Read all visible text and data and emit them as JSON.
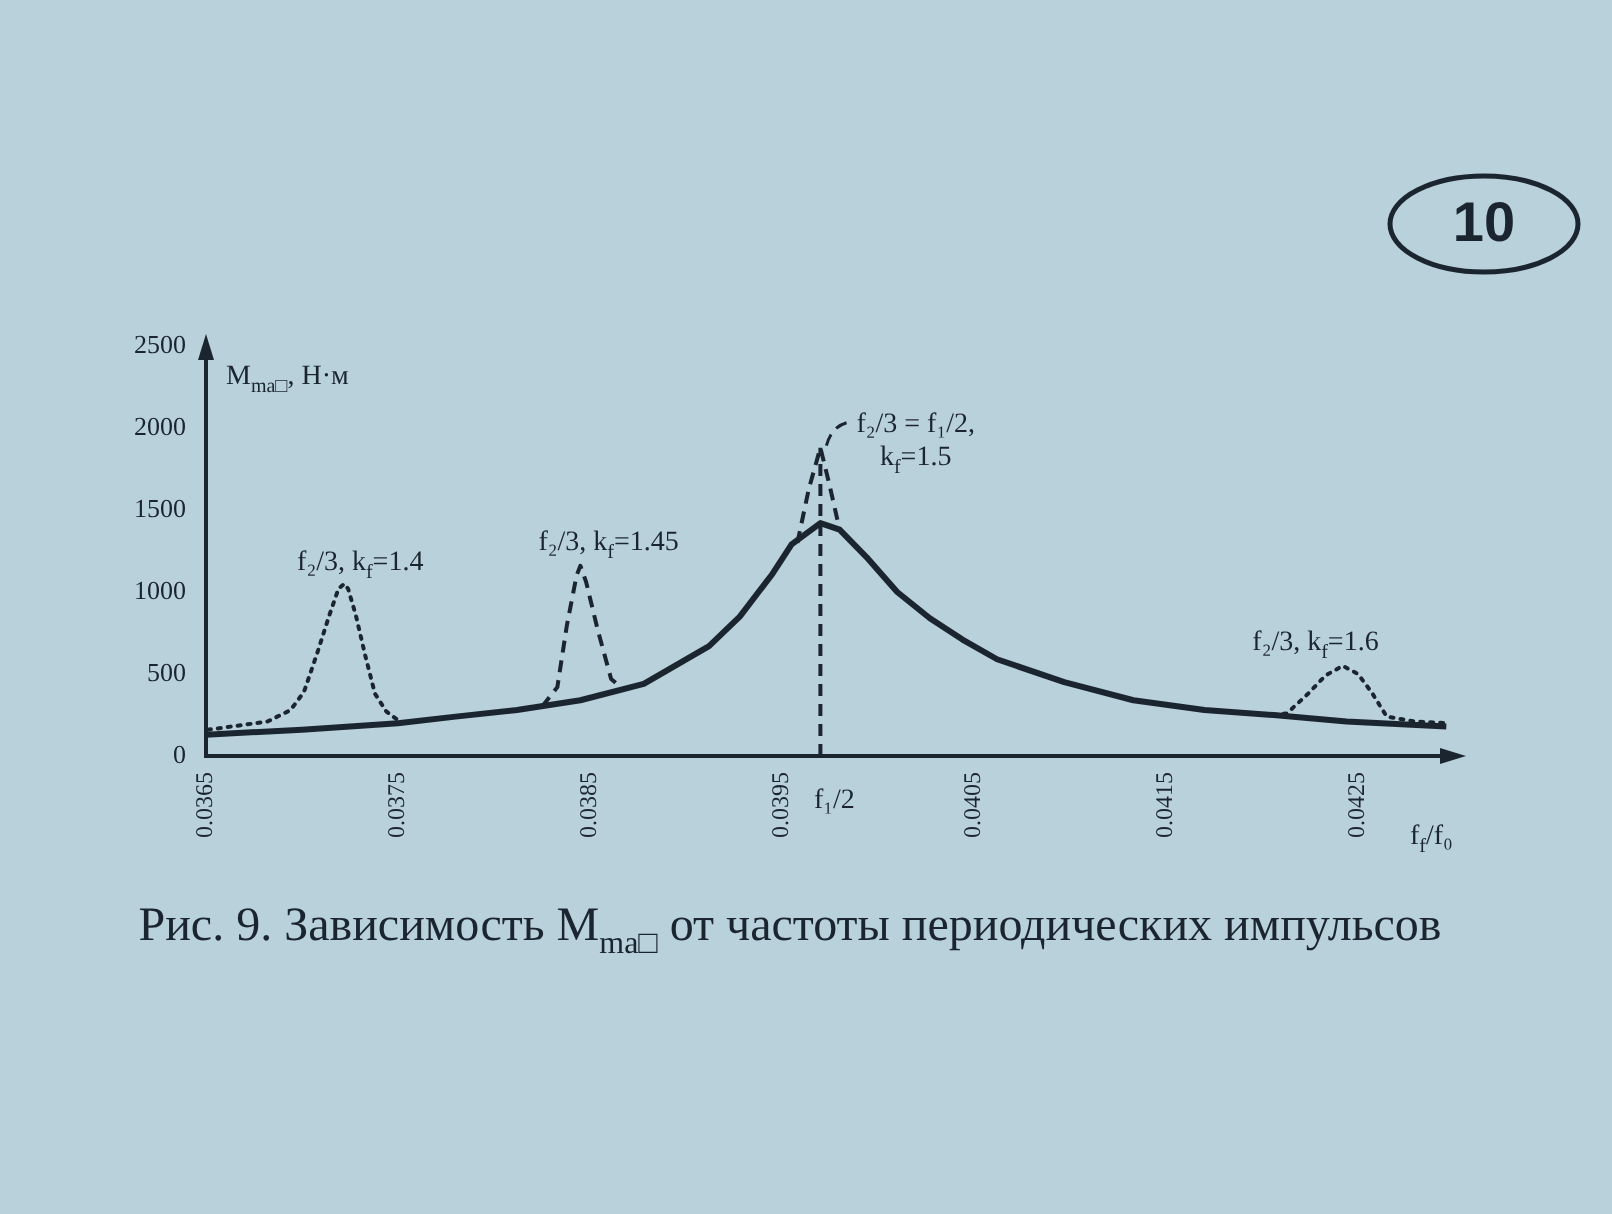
{
  "chart_data": {
    "type": "line",
    "xlabel": "f$_{f}$/f₀",
    "ylabel": "M$_{ma□}$, Н·м",
    "marker": "none",
    "xlim": [
      0.0365,
      0.043
    ],
    "ylim": [
      0,
      2500
    ],
    "xticks": [
      0.0365,
      0.0375,
      0.0385,
      0.0395,
      0.0405,
      0.0415,
      0.0425
    ],
    "yticks": [
      0,
      500,
      1000,
      1500,
      2000,
      2500
    ],
    "series": [
      {
        "color": "#1b2530",
        "line_style": "solid",
        "x": [
          0.0365,
          0.037,
          0.0375,
          0.0378,
          0.03812,
          0.03845,
          0.03878,
          0.03912,
          0.03928,
          0.03945,
          0.03955,
          0.0397,
          0.0398,
          0.03995,
          0.0401,
          0.04027,
          0.04044,
          0.04062,
          0.04097,
          0.04133,
          0.0417,
          0.04206,
          0.04244,
          0.04296
        ],
        "values": [
          130,
          160,
          200,
          240,
          280,
          340,
          440,
          670,
          850,
          1110,
          1290,
          1420,
          1380,
          1200,
          1000,
          840,
          710,
          590,
          450,
          340,
          280,
          250,
          210,
          180
        ]
      },
      {
        "name": "f₂/3, k$_{f}$=1.4",
        "color": "#1b2530",
        "line_style": "dotted",
        "x": [
          0.03651,
          0.03682,
          0.03694,
          0.03701,
          0.03708,
          0.03714,
          0.03719,
          0.03722,
          0.03724,
          0.03728,
          0.03733,
          0.03738,
          0.03744,
          0.03751
        ],
        "values": [
          160,
          210,
          280,
          390,
          630,
          850,
          1020,
          1050,
          1020,
          860,
          610,
          380,
          270,
          210
        ]
      },
      {
        "name": "f₂/3, k$_{f}$=1.45",
        "color": "#1b2530",
        "line_style": "dashed",
        "x": [
          0.03825,
          0.03833,
          0.03838,
          0.03843,
          0.03845,
          0.03848,
          0.03854,
          0.03861,
          0.03868
        ],
        "values": [
          300,
          420,
          800,
          1100,
          1160,
          1060,
          770,
          470,
          400
        ]
      },
      {
        "name": "f₂/3 = f₁/2,\nk$_{f}$=1.5",
        "color": "#1b2530",
        "line_style": "dashed",
        "x": [
          0.03958,
          0.03964,
          0.0397,
          0.03975,
          0.0398
        ],
        "values": [
          1300,
          1630,
          1880,
          1640,
          1380
        ]
      },
      {
        "name": "f₁/2",
        "color": "#1b2530",
        "line_style": "dashed",
        "x": [
          0.0397,
          0.0397
        ],
        "values": [
          0,
          1880
        ]
      },
      {
        "name": "f₂/3, k$_{f}$=1.6",
        "color": "#1b2530",
        "line_style": "dotted",
        "x": [
          0.04206,
          0.04213,
          0.04224,
          0.04233,
          0.04242,
          0.0425,
          0.04257,
          0.04265,
          0.0428,
          0.04297
        ],
        "values": [
          250,
          260,
          380,
          490,
          550,
          500,
          390,
          240,
          210,
          200
        ]
      }
    ],
    "annotations": [
      "Рис. 9. Зависимость M$_{ma□}$ от частоты периодических импульсов",
      "10"
    ]
  }
}
